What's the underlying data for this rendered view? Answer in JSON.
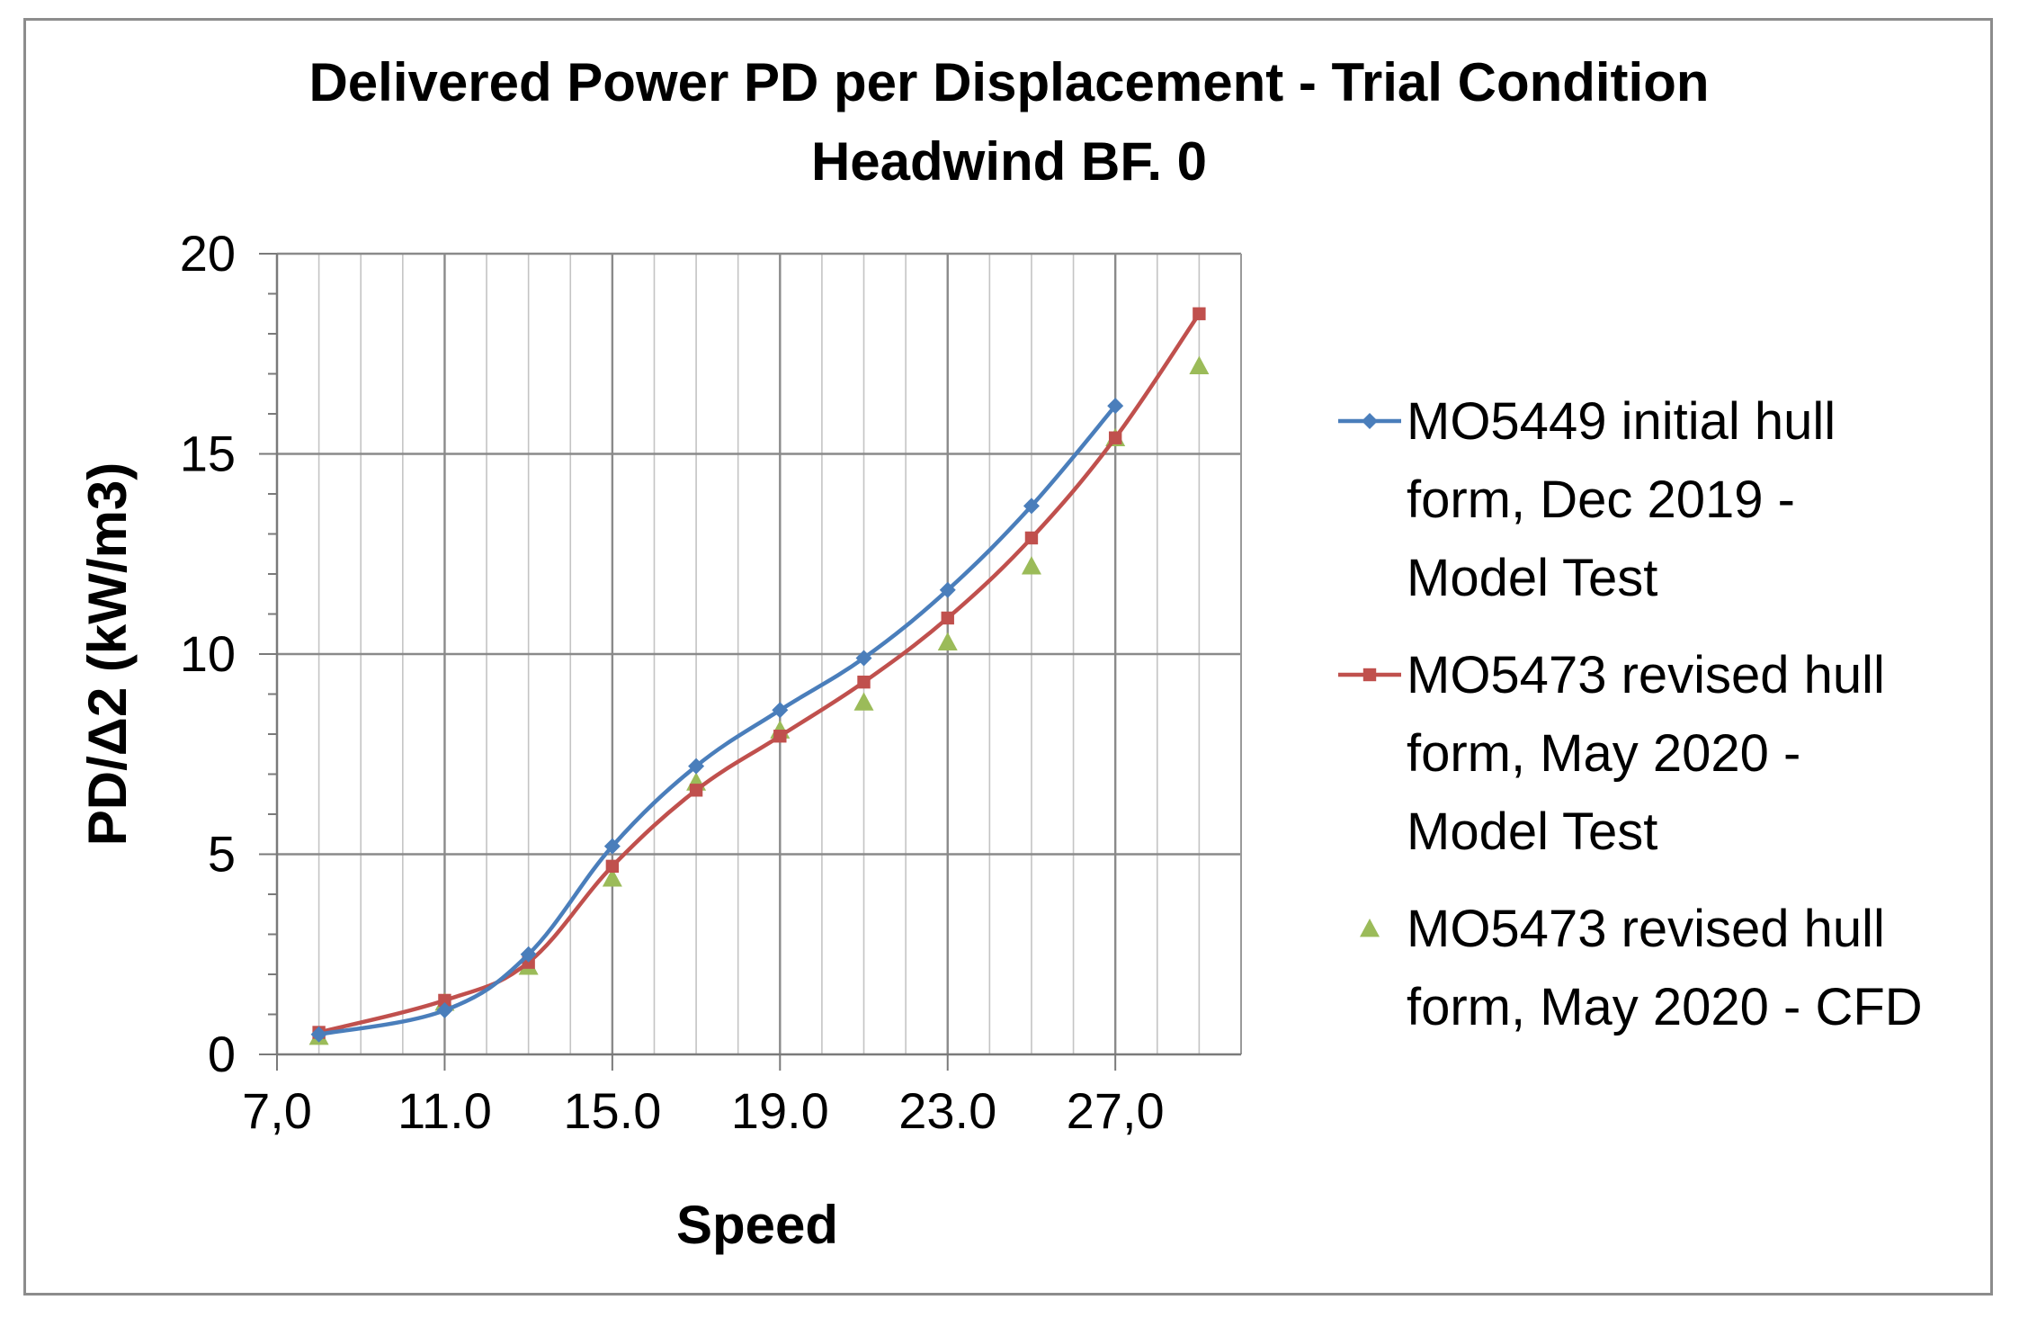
{
  "chart_data": {
    "type": "line",
    "title": [
      "Delivered Power PD per Displacement - Trial Condition",
      "Headwind BF. 0"
    ],
    "xlabel": "Speed",
    "ylabel": "PD/Δ2 (kW/m3)",
    "xlim": [
      7.0,
      30.0
    ],
    "ylim": [
      0,
      20
    ],
    "x_ticks": [
      7.0,
      11.0,
      15.0,
      19.0,
      23.0,
      27.0
    ],
    "x_tick_labels": [
      "7,0",
      "11.0",
      "15.0",
      "19.0",
      "23.0",
      "27,0"
    ],
    "y_ticks": [
      0,
      5,
      10,
      15,
      20
    ],
    "y_tick_labels": [
      "0",
      "5",
      "10",
      "15",
      "20"
    ],
    "grid": true,
    "legend_position": "right",
    "series": [
      {
        "name": "MO5449 initial hull form, Dec 2019 - Model Test",
        "legend_lines": [
          "MO5449 initial hull",
          "form, Dec 2019 -",
          "Model Test"
        ],
        "color": "#4a7ebb",
        "marker": "diamond",
        "line": true,
        "x": [
          8,
          11,
          13,
          15,
          17,
          19,
          21,
          23,
          25,
          27
        ],
        "y": [
          0.5,
          1.1,
          2.5,
          5.2,
          7.2,
          8.6,
          9.9,
          11.6,
          13.7,
          16.2
        ]
      },
      {
        "name": "MO5473 revised hull form, May 2020 - Model Test",
        "legend_lines": [
          "MO5473 revised hull",
          "form, May 2020 -",
          "Model Test"
        ],
        "color": "#c0504d",
        "marker": "square",
        "line": true,
        "x": [
          8,
          11,
          13,
          15,
          17,
          19,
          21,
          23,
          25,
          27,
          29
        ],
        "y": [
          0.55,
          1.35,
          2.3,
          4.7,
          6.6,
          7.95,
          9.3,
          10.9,
          12.9,
          15.4,
          18.5
        ]
      },
      {
        "name": "MO5473 revised hull form, May 2020 - CFD",
        "legend_lines": [
          "MO5473 revised hull",
          "form, May 2020 - CFD"
        ],
        "color": "#9bbb59",
        "marker": "triangle",
        "line": false,
        "x": [
          8,
          11,
          13,
          15,
          17,
          19,
          21,
          23,
          25,
          27,
          29
        ],
        "y": [
          0.45,
          1.3,
          2.2,
          4.4,
          6.8,
          8.1,
          8.8,
          10.3,
          12.2,
          15.4,
          17.2
        ]
      }
    ]
  }
}
